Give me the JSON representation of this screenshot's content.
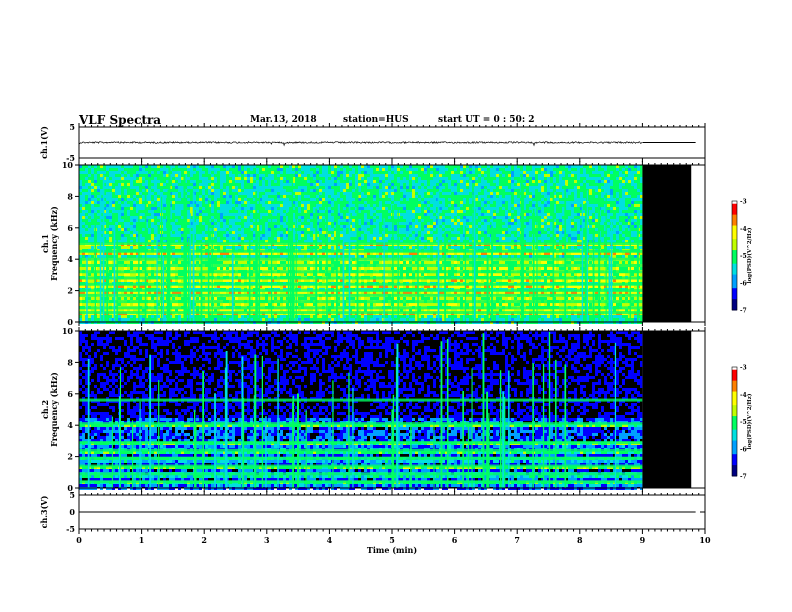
{
  "header": {
    "title": "VLF Spectra",
    "date": "Mar.13, 2018",
    "station": "station=HUS",
    "start": "start UT = 0 : 50: 2"
  },
  "chart_data": [
    {
      "type": "line",
      "panel": "ch1-waveform",
      "ylabel": "ch.1(V)",
      "ylim": [
        -5,
        5
      ],
      "yticks": [
        "5",
        "-5"
      ],
      "xlim": [
        0,
        10
      ],
      "series": [
        {
          "x": [
            0,
            9.0,
            9.0,
            9.85
          ],
          "y": [
            0,
            0,
            0,
            0
          ]
        }
      ]
    },
    {
      "type": "heatmap",
      "panel": "ch1-spectrogram",
      "ylabel": "ch.1 Frequency (kHz)",
      "ylim": [
        0,
        10
      ],
      "yticks": [
        "0",
        "2",
        "4",
        "6",
        "8",
        "10"
      ],
      "xlim": [
        0,
        10
      ],
      "data_end_min": 9.0,
      "bands_khz": [
        0.6,
        0.9,
        1.3,
        1.7,
        2.0,
        2.4,
        2.8,
        3.2,
        3.6,
        4.0,
        4.5,
        5.0
      ],
      "colorbar": {
        "label": "log(PSD)(V^2/Hz)",
        "ticks": [
          "-3",
          "-4",
          "-5",
          "-6",
          "-7"
        ],
        "range": [
          -7,
          -3
        ]
      }
    },
    {
      "type": "heatmap",
      "panel": "ch2-spectrogram",
      "ylabel": "ch.2 Frequency (kHz)",
      "ylim": [
        0,
        10
      ],
      "yticks": [
        "0",
        "2",
        "4",
        "6",
        "8",
        "10"
      ],
      "xlim": [
        0,
        10
      ],
      "data_end_min": 9.0,
      "bands_khz": [
        0.4,
        0.9,
        1.4,
        1.9,
        2.4,
        2.9,
        4.1,
        5.6
      ],
      "colorbar": {
        "label": "log(PSD)(V^2/Hz)",
        "ticks": [
          "-3",
          "-4",
          "-5",
          "-6",
          "-7"
        ],
        "range": [
          -7,
          -3
        ]
      }
    },
    {
      "type": "line",
      "panel": "ch3-waveform",
      "ylabel": "ch.3(V)",
      "ylim": [
        -5,
        5
      ],
      "yticks": [
        "5",
        "0",
        "-5"
      ],
      "xlim": [
        0,
        10
      ],
      "xlabel": "Time (min)",
      "xticks": [
        "0",
        "1",
        "2",
        "3",
        "4",
        "5",
        "6",
        "7",
        "8",
        "9",
        "10"
      ],
      "series": [
        {
          "x": [
            0,
            9.85
          ],
          "y": [
            0,
            0
          ]
        }
      ]
    }
  ],
  "colors": {
    "background_fill": "#000000",
    "colormap": [
      "#000080",
      "#0000ff",
      "#00a0ff",
      "#00e0e0",
      "#00ff60",
      "#c0ff00",
      "#ffff00",
      "#ff8000",
      "#ff0000",
      "#ffffff"
    ]
  }
}
